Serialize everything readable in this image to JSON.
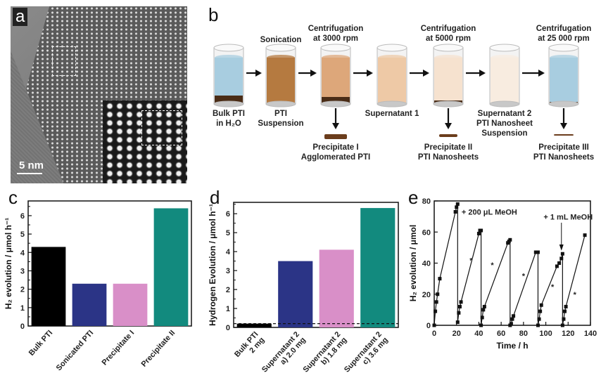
{
  "panel_labels": {
    "a": "a",
    "b": "b",
    "c": "c",
    "d": "d",
    "e": "e"
  },
  "panel_a": {
    "scale_bar": "5 nm"
  },
  "panel_b": {
    "steps": [
      {
        "top": "",
        "bottom": "Bulk PTI\nin H₂O"
      },
      {
        "top": "Sonication",
        "bottom": "PTI\nSuspension"
      },
      {
        "top": "Centrifugation\nat 3000 rpm",
        "bottom": ""
      },
      {
        "top": "",
        "bottom": "Supernatant 1"
      },
      {
        "top": "Centrifugation\nat 5000 rpm",
        "bottom": ""
      },
      {
        "top": "",
        "bottom": "Supernatant 2\nPTI Nanosheet\nSuspension"
      },
      {
        "top": "Centrifugation\nat 25 000 rpm",
        "bottom": ""
      }
    ],
    "precipitates": [
      "Precipitate I\nAgglomerated PTI",
      "Precipitate II\nPTI Nanosheets",
      "Precipitate III\nPTI Nanosheets"
    ],
    "colors": {
      "water": "#a8cde0",
      "brown": "#b57a40",
      "tan": "#dda77a",
      "light_tan": "#eec9a6",
      "cream": "#f6e2cf",
      "pale": "#f8ece0",
      "dark": "#4a2c16"
    }
  },
  "chart_data": [
    {
      "type": "bar",
      "title": "",
      "xlabel": "",
      "ylabel": "H₂ evolution / μmol h⁻¹",
      "categories": [
        "Bulk PTI",
        "Sonicated PTI",
        "Precipitate I",
        "Precipitate II"
      ],
      "values": [
        4.3,
        2.3,
        2.3,
        6.4
      ],
      "colors": [
        "#000000",
        "#2b3486",
        "#d98fc8",
        "#128a7e"
      ],
      "ylim": [
        0,
        6.8
      ],
      "yticks": [
        "0",
        "1",
        "2",
        "3",
        "4",
        "5",
        "6"
      ]
    },
    {
      "type": "bar",
      "title": "",
      "xlabel": "",
      "ylabel": "Hydrogen Evolution / μmol h⁻¹",
      "categories": [
        "Bulk PTI\n2 mg",
        "Supernatant 2\na) 2.0 mg",
        "Supernatant 2\nb) 1.8 mg",
        "Supernatant 2\nc) 3.6 mg"
      ],
      "values": [
        0.2,
        3.5,
        4.1,
        6.3
      ],
      "colors": [
        "#000000",
        "#2b3486",
        "#d98fc8",
        "#128a7e"
      ],
      "reference_line": 0.2,
      "ylim": [
        0,
        6.6
      ],
      "yticks": [
        "0",
        "1",
        "2",
        "3",
        "4",
        "5",
        "6"
      ]
    },
    {
      "type": "line",
      "title": "",
      "xlabel": "Time / h",
      "ylabel": "H₂ evolution / μmol",
      "xlim": [
        0,
        140
      ],
      "ylim": [
        0,
        80
      ],
      "xticks": [
        "0",
        "20",
        "40",
        "60",
        "80",
        "100",
        "120",
        "140"
      ],
      "yticks": [
        "0",
        "20",
        "40",
        "60",
        "80"
      ],
      "annotations": [
        "+ 200 μL MeOH",
        "+ 1 mL MeOH"
      ],
      "cycles": [
        {
          "x": [
            0,
            1,
            2,
            3,
            5,
            19,
            20,
            21
          ],
          "y": [
            0,
            9,
            15,
            20,
            30,
            73,
            76,
            78
          ]
        },
        {
          "x": [
            21,
            22,
            23,
            24,
            40,
            41,
            42
          ],
          "y": [
            2,
            8,
            12,
            15,
            59,
            61,
            61
          ]
        },
        {
          "x": [
            42,
            43,
            44,
            45,
            66,
            67,
            68
          ],
          "y": [
            0,
            5,
            10,
            12,
            53,
            54,
            55
          ]
        },
        {
          "x": [
            68,
            69,
            70,
            71,
            91,
            92,
            93
          ],
          "y": [
            0,
            1,
            4,
            6,
            47,
            47,
            47
          ]
        },
        {
          "x": [
            93,
            94,
            95,
            96,
            110,
            112,
            114,
            115
          ],
          "y": [
            0,
            4,
            9,
            13,
            38,
            40,
            43,
            46
          ]
        },
        {
          "x": [
            115,
            116,
            117,
            118,
            135
          ],
          "y": [
            0,
            4,
            9,
            12,
            58
          ]
        }
      ]
    }
  ]
}
